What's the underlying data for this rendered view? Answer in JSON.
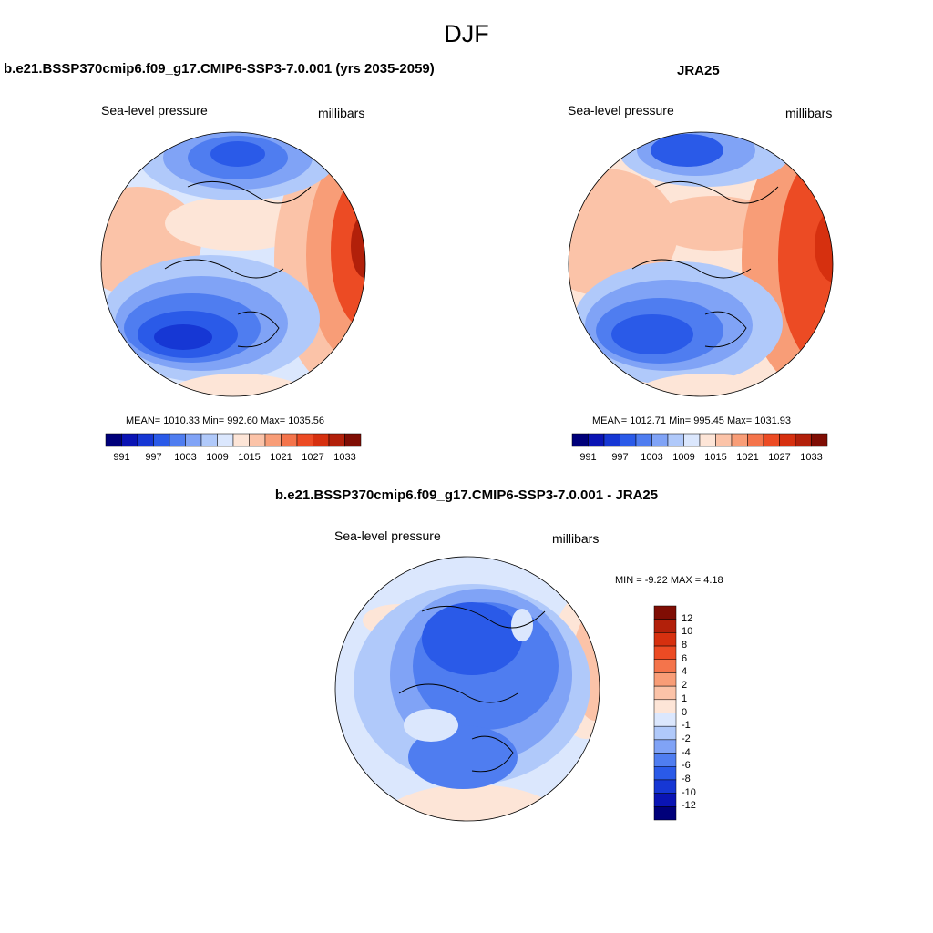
{
  "main_title": "DJF",
  "panels": [
    {
      "title": "b.e21.BSSP370cmip6.f09_g17.CMIP6-SSP3-7.0.001 (yrs 2035-2059)",
      "field_label": "Sea-level pressure",
      "units_label": "millibars",
      "stats": "MEAN= 1010.33   Min= 992.60   Max= 1035.56"
    },
    {
      "title": "JRA25",
      "field_label": "Sea-level pressure",
      "units_label": "millibars",
      "stats": "MEAN= 1012.71   Min= 995.45   Max= 1031.93"
    },
    {
      "title": "b.e21.BSSP370cmip6.f09_g17.CMIP6-SSP3-7.0.001 - JRA25",
      "field_label": "Sea-level pressure",
      "units_label": "millibars",
      "stats": "MIN =  -9.22 MAX =   4.18"
    }
  ],
  "abs_colorbar": {
    "ticks": [
      "991",
      "997",
      "1003",
      "1009",
      "1015",
      "1021",
      "1027",
      "1033"
    ],
    "colors": [
      "#00007a",
      "#0a14b4",
      "#1637d4",
      "#2a5ae8",
      "#4f7df0",
      "#80a3f6",
      "#b0c9fa",
      "#dbe7fd",
      "#fde5d7",
      "#fbc3a8",
      "#f89d77",
      "#f4744b",
      "#ec4b24",
      "#d6300f",
      "#b2200a",
      "#7f0d04"
    ]
  },
  "diff_colorbar": {
    "ticks": [
      "12",
      "10",
      "8",
      "6",
      "4",
      "2",
      "1",
      "0",
      "-1",
      "-2",
      "-4",
      "-6",
      "-8",
      "-10",
      "-12"
    ],
    "colors": [
      "#7f0d04",
      "#b2200a",
      "#d6300f",
      "#ec4b24",
      "#f4744b",
      "#f89d77",
      "#fbc3a8",
      "#fde5d7",
      "#dbe7fd",
      "#b0c9fa",
      "#80a3f6",
      "#4f7df0",
      "#2a5ae8",
      "#1637d4",
      "#0a14b4",
      "#00007a"
    ]
  },
  "palette": {
    "blue_dark": "#0a14b4",
    "blue_mid": "#2a5ae8",
    "blue_light": "#80a3f6",
    "blue_pale": "#dbe7fd",
    "red_pale": "#fde5d7",
    "red_light": "#f89d77",
    "red_mid": "#ec4b24",
    "red_dark": "#b2200a"
  }
}
